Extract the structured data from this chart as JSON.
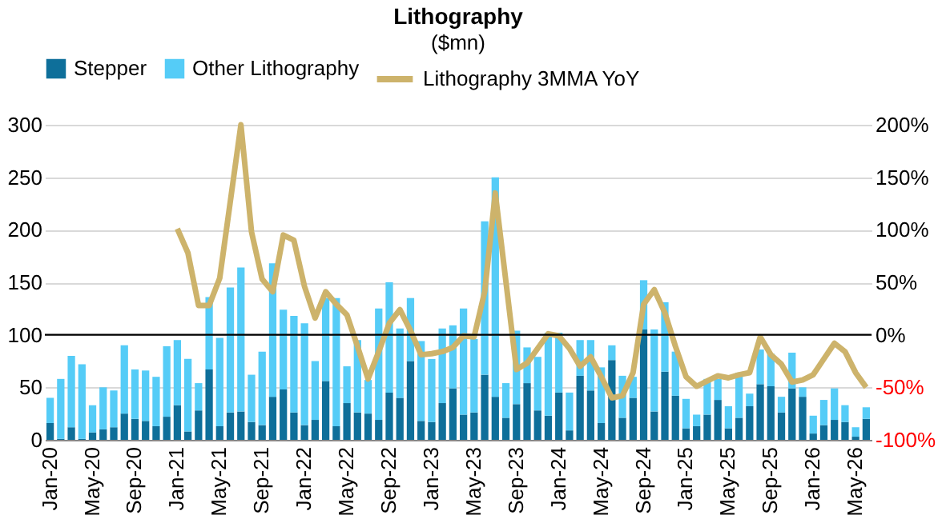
{
  "chart_data": {
    "type": "bar",
    "title": "Lithography",
    "ylabel": "($mn)",
    "stacked": true,
    "categories": [
      "Jan-20",
      null,
      null,
      null,
      "May-20",
      null,
      null,
      null,
      "Sep-20",
      null,
      null,
      null,
      "Jan-21",
      null,
      null,
      null,
      "May-21",
      null,
      null,
      null,
      "Sep-21",
      null,
      null,
      null,
      "Jan-22",
      null,
      null,
      null,
      "May-22",
      null,
      null,
      null,
      "Sep-22",
      null,
      null,
      null,
      "Jan-23",
      null,
      null,
      null,
      "May-23",
      null,
      null,
      null,
      "Sep-23",
      null,
      null,
      null,
      "Jan-24",
      null,
      null,
      null,
      "May-24",
      null,
      null,
      null,
      "Sep-24",
      null,
      null,
      null,
      "Jan-25",
      null,
      null,
      null,
      "May-25",
      null,
      null,
      null,
      "Sep-25",
      null,
      null,
      null,
      "Jan-26",
      null,
      null,
      null,
      "May-26",
      null
    ],
    "series": [
      {
        "name": "Stepper",
        "color": "#0e6f9a",
        "values": [
          16,
          1,
          12,
          1,
          7,
          10,
          12,
          25,
          20,
          18,
          13,
          22,
          33,
          8,
          28,
          67,
          13,
          26,
          27,
          17,
          14,
          41,
          48,
          26,
          14,
          19,
          56,
          13,
          35,
          26,
          25,
          19,
          45,
          40,
          75,
          18,
          17,
          35,
          49,
          24,
          26,
          62,
          41,
          21,
          34,
          54,
          28,
          23,
          45,
          9,
          61,
          47,
          16,
          76,
          21,
          40,
          105,
          27,
          65,
          42,
          11,
          13,
          24,
          38,
          11,
          21,
          32,
          53,
          51,
          26,
          49,
          41,
          6,
          14,
          19,
          17,
          3,
          20
        ]
      },
      {
        "name": "Other Lithography",
        "color": "#55ccf7",
        "values": [
          24,
          57,
          68,
          71,
          26,
          40,
          35,
          65,
          47,
          48,
          47,
          67,
          62,
          69,
          26,
          69,
          84,
          119,
          137,
          45,
          70,
          127,
          76,
          92,
          97,
          56,
          79,
          122,
          35,
          69,
          32,
          106,
          105,
          66,
          60,
          76,
          60,
          71,
          60,
          101,
          70,
          146,
          209,
          33,
          70,
          34,
          51,
          79,
          57,
          36,
          34,
          48,
          53,
          14,
          40,
          20,
          47,
          78,
          66,
          42,
          28,
          11,
          34,
          20,
          21,
          43,
          12,
          33,
          31,
          15,
          34,
          9,
          17,
          24,
          30,
          16,
          9,
          11
        ]
      },
      {
        "name": "Lithography 3MMA YoY",
        "type": "line",
        "axis": "y2",
        "color": "#cdb36b",
        "values": [
          null,
          null,
          null,
          null,
          null,
          null,
          null,
          null,
          null,
          null,
          null,
          null,
          101,
          78,
          28,
          28,
          54,
          127,
          200,
          98,
          53,
          41,
          95,
          90,
          46,
          16,
          41,
          29,
          19,
          -11,
          -42,
          -16,
          11,
          24,
          4,
          -19,
          -18,
          -16,
          -12,
          -1,
          -2,
          41,
          135,
          51,
          -33,
          -27,
          -13,
          1,
          -1,
          -13,
          -30,
          -21,
          -40,
          -60,
          -58,
          -36,
          29,
          43,
          21,
          -11,
          -40,
          -49,
          -44,
          -39,
          -41,
          -38,
          -36,
          -2,
          -19,
          -28,
          -45,
          -43,
          -38,
          -23,
          -8,
          -16,
          -36,
          -50
        ]
      }
    ],
    "ylim": [
      0,
      300
    ],
    "yticks": [
      0,
      50,
      100,
      150,
      200,
      250,
      300
    ],
    "y2lim": [
      -100,
      200
    ],
    "y2ticks": [
      {
        "value": -100,
        "label": "-100%"
      },
      {
        "value": -50,
        "label": "-50%"
      },
      {
        "value": 0,
        "label": "0%"
      },
      {
        "value": 50,
        "label": "50%"
      },
      {
        "value": 100,
        "label": "100%"
      },
      {
        "value": 150,
        "label": "150%"
      },
      {
        "value": 200,
        "label": "200%"
      }
    ],
    "ref_lines": [
      {
        "axis": "y2",
        "value": 0,
        "color": "#000000"
      }
    ],
    "grid": "y",
    "legend": "top"
  }
}
